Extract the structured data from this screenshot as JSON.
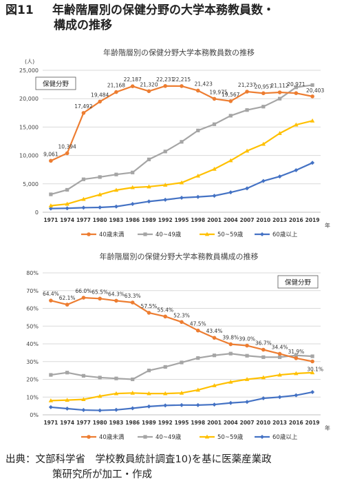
{
  "figure": {
    "number": "図11",
    "title_line1": "年齢階層別の保健分野の大学本務教員数・",
    "title_line2": "構成の推移"
  },
  "source": {
    "line1": "出典：文部科学省　学校教員統計調査10)を基に医薬産業政",
    "line2": "策研究所が加工・作成"
  },
  "colors": {
    "under40": "#ED7D31",
    "age40s": "#A5A5A5",
    "age50s": "#FFC000",
    "over60": "#4472C4"
  },
  "chart_data": [
    {
      "type": "line",
      "title": "年齢階層別の保健分野大学本務教員数の推移",
      "box_label": "保健分野",
      "ylabel": "(人)",
      "xlabel": "年",
      "ylim": [
        0,
        25000
      ],
      "yticks": [
        "0",
        "5,000",
        "10,000",
        "15,000",
        "20,000",
        "25,000"
      ],
      "grid": true,
      "legend": "bottom",
      "categories": [
        "1971",
        "1974",
        "1977",
        "1980",
        "1983",
        "1986",
        "1989",
        "1992",
        "1995",
        "1998",
        "2001",
        "2004",
        "2007",
        "2010",
        "2013",
        "2016",
        "2019"
      ],
      "series": [
        {
          "name": "40歳未満",
          "color": "#ED7D31",
          "values": [
            9061,
            10394,
            17492,
            19484,
            21168,
            22187,
            21320,
            22231,
            22215,
            21423,
            19975,
            19567,
            21237,
            20957,
            21112,
            20971,
            20403
          ],
          "labels": [
            "9,061",
            "10,394",
            "17,492",
            "19,484",
            "21,168",
            "22,187",
            "21,320",
            "22,231",
            "22,215",
            "21,423",
            "19,975",
            "19,567",
            "21,237",
            "20,957",
            "21,112",
            "20,971",
            "20,403"
          ]
        },
        {
          "name": "40~49歳",
          "color": "#A5A5A5",
          "values": [
            3150,
            3950,
            5800,
            6200,
            6650,
            7000,
            9300,
            10700,
            12400,
            14400,
            15500,
            17000,
            18000,
            18600,
            20000,
            22000,
            22400
          ]
        },
        {
          "name": "50~59歳",
          "color": "#FFC000",
          "values": [
            1150,
            1450,
            2300,
            3100,
            3900,
            4350,
            4500,
            4800,
            5200,
            6400,
            7600,
            9100,
            10800,
            12000,
            13900,
            15400,
            16100
          ]
        },
        {
          "name": "60歳以上",
          "color": "#4472C4",
          "values": [
            650,
            700,
            800,
            850,
            1000,
            1450,
            1900,
            2200,
            2550,
            2700,
            2900,
            3500,
            4200,
            5500,
            6300,
            7400,
            8700
          ]
        }
      ]
    },
    {
      "type": "line",
      "title": "年齢階層別の保健分野大学本務教員構成の推移",
      "box_label": "保健分野",
      "xlabel": "年",
      "ylim": [
        0,
        80
      ],
      "yticks": [
        "0%",
        "10%",
        "20%",
        "30%",
        "40%",
        "50%",
        "60%",
        "70%",
        "80%"
      ],
      "grid": true,
      "legend": "bottom",
      "categories": [
        "1971",
        "1974",
        "1977",
        "1980",
        "1983",
        "1986",
        "1989",
        "1992",
        "1995",
        "1998",
        "2001",
        "2004",
        "2007",
        "2010",
        "2013",
        "2016",
        "2019"
      ],
      "series": [
        {
          "name": "40歳未満",
          "color": "#ED7D31",
          "values": [
            64.4,
            62.1,
            66.0,
            65.5,
            64.3,
            63.3,
            57.5,
            55.4,
            52.3,
            47.5,
            43.4,
            39.8,
            39.0,
            36.7,
            34.4,
            31.9,
            30.1
          ],
          "labels": [
            "64.4%",
            "62.1%",
            "66.0%",
            "65.5%",
            "64.3%",
            "63.3%",
            "57.5%",
            "55.4%",
            "52.3%",
            "47.5%",
            "43.4%",
            "39.8%",
            "39.0%",
            "36.7%",
            "34.4%",
            "31.9%",
            "30.1%"
          ]
        },
        {
          "name": "40~49歳",
          "color": "#A5A5A5",
          "values": [
            22.5,
            23.8,
            22.0,
            21.0,
            20.5,
            20.0,
            25.0,
            27.0,
            29.5,
            32.0,
            33.5,
            34.5,
            33.3,
            32.5,
            32.5,
            33.5,
            33.0
          ]
        },
        {
          "name": "50~59歳",
          "color": "#FFC000",
          "values": [
            8.0,
            8.3,
            8.7,
            10.5,
            12.0,
            12.3,
            12.0,
            12.0,
            12.3,
            14.0,
            16.5,
            18.5,
            20.0,
            21.0,
            22.5,
            23.3,
            23.8
          ]
        },
        {
          "name": "60歳以上",
          "color": "#4472C4",
          "values": [
            4.3,
            3.5,
            2.7,
            2.5,
            2.8,
            3.7,
            4.7,
            5.3,
            5.5,
            5.5,
            5.8,
            6.7,
            7.3,
            9.3,
            10.0,
            11.0,
            12.8
          ]
        }
      ]
    }
  ]
}
